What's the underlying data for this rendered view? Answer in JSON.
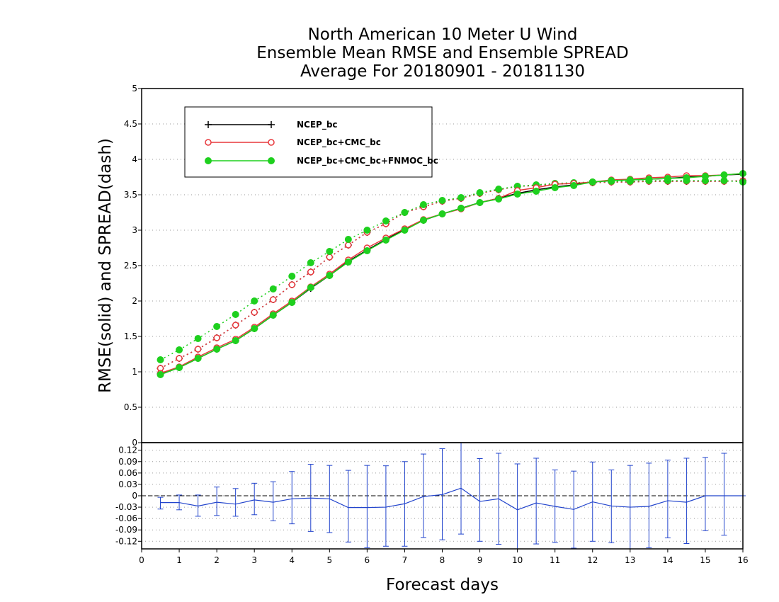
{
  "chart_data": {
    "type": "line",
    "title_lines": [
      "North American 10 Meter U Wind",
      "Ensemble Mean RMSE and Ensemble SPREAD",
      "Average For 20180901 - 20181130"
    ],
    "xlabel": "Forecast days",
    "ylabel": "RMSE(solid) and SPREAD(dash)",
    "xlim": [
      0,
      16
    ],
    "ylim": [
      0,
      5
    ],
    "x_ticks": [
      "0",
      "1",
      "2",
      "3",
      "4",
      "5",
      "6",
      "7",
      "8",
      "9",
      "10",
      "11",
      "12",
      "13",
      "14",
      "15",
      "16"
    ],
    "y_ticks": [
      "0",
      "0.5",
      "1",
      "1.5",
      "2",
      "2.5",
      "3",
      "3.5",
      "4",
      "4.5",
      "5"
    ],
    "grid": "horizontal dotted",
    "legend_position": "top-left",
    "x": [
      0.5,
      1,
      1.5,
      2,
      2.5,
      3,
      3.5,
      4,
      4.5,
      5,
      5.5,
      6,
      6.5,
      7,
      7.5,
      8,
      8.5,
      9,
      9.5,
      10,
      10.5,
      11,
      11.5,
      12,
      12.5,
      13,
      13.5,
      14,
      14.5,
      15,
      15.5,
      16
    ],
    "series": [
      {
        "name": "NCEP_bc",
        "color": "#000000",
        "marker": "plus",
        "rmse": [
          0.97,
          1.06,
          1.19,
          1.32,
          1.44,
          1.61,
          1.8,
          1.98,
          2.18,
          2.36,
          2.56,
          2.72,
          2.87,
          3.01,
          3.14,
          3.23,
          3.31,
          3.39,
          3.45,
          3.52,
          3.57,
          3.61,
          3.64,
          3.68,
          3.7,
          3.71,
          3.72,
          3.73,
          3.75,
          3.76,
          3.78,
          3.79
        ],
        "spread": [
          1.05,
          1.19,
          1.32,
          1.48,
          1.66,
          1.84,
          2.02,
          2.23,
          2.41,
          2.62,
          2.79,
          2.97,
          3.09,
          3.25,
          3.33,
          3.41,
          3.45,
          3.52,
          3.57,
          3.62,
          3.63,
          3.65,
          3.66,
          3.67,
          3.68,
          3.68,
          3.69,
          3.69,
          3.69,
          3.69,
          3.69,
          3.7
        ]
      },
      {
        "name": "NCEP_bc+CMC_bc",
        "color": "#e8383c",
        "marker": "open-circle",
        "rmse": [
          0.98,
          1.07,
          1.21,
          1.34,
          1.46,
          1.63,
          1.82,
          2.0,
          2.2,
          2.38,
          2.58,
          2.75,
          2.89,
          3.02,
          3.15,
          3.23,
          3.3,
          3.39,
          3.45,
          3.56,
          3.6,
          3.65,
          3.66,
          3.68,
          3.71,
          3.72,
          3.74,
          3.75,
          3.77,
          3.77,
          3.78,
          3.8
        ],
        "spread": [
          1.05,
          1.19,
          1.32,
          1.48,
          1.66,
          1.84,
          2.02,
          2.23,
          2.41,
          2.62,
          2.79,
          2.97,
          3.09,
          3.25,
          3.33,
          3.41,
          3.45,
          3.52,
          3.57,
          3.62,
          3.63,
          3.65,
          3.66,
          3.67,
          3.68,
          3.68,
          3.69,
          3.69,
          3.69,
          3.69,
          3.69,
          3.7
        ]
      },
      {
        "name": "NCEP_bc+CMC_bc+FNMOC_bc",
        "color": "#1ed01e",
        "marker": "filled-circle",
        "rmse": [
          0.96,
          1.06,
          1.19,
          1.32,
          1.44,
          1.61,
          1.8,
          1.98,
          2.19,
          2.36,
          2.55,
          2.71,
          2.86,
          3.0,
          3.14,
          3.23,
          3.31,
          3.39,
          3.44,
          3.51,
          3.55,
          3.6,
          3.63,
          3.68,
          3.7,
          3.71,
          3.72,
          3.73,
          3.74,
          3.76,
          3.78,
          3.8
        ],
        "spread": [
          1.17,
          1.31,
          1.47,
          1.64,
          1.81,
          2.0,
          2.17,
          2.35,
          2.54,
          2.7,
          2.87,
          3.0,
          3.13,
          3.25,
          3.36,
          3.42,
          3.46,
          3.53,
          3.58,
          3.62,
          3.64,
          3.66,
          3.67,
          3.68,
          3.69,
          3.69,
          3.7,
          3.7,
          3.7,
          3.7,
          3.7,
          3.68
        ]
      }
    ],
    "difference_panel": {
      "ylim": [
        -0.14,
        0.14
      ],
      "y_ticks": [
        "0.12",
        "0.09",
        "0.06",
        "0.03",
        "0",
        "-0.03",
        "-0.06",
        "-0.09",
        "-0.12"
      ],
      "color": "#2244cc",
      "mean": [
        -0.018,
        -0.018,
        -0.027,
        -0.017,
        -0.022,
        -0.011,
        -0.017,
        -0.008,
        -0.006,
        -0.008,
        -0.031,
        -0.031,
        -0.03,
        -0.021,
        -0.002,
        0.003,
        0.02,
        -0.015,
        -0.008,
        -0.037,
        -0.019,
        -0.028,
        -0.036,
        -0.016,
        -0.027,
        -0.03,
        -0.028,
        -0.013,
        -0.017,
        0.0,
        0.0,
        0.0
      ],
      "upper": [
        -0.004,
        0.002,
        0.002,
        0.023,
        0.019,
        0.033,
        0.037,
        0.064,
        0.083,
        0.08,
        0.067,
        0.08,
        0.079,
        0.09,
        0.11,
        0.124,
        0.14,
        0.098,
        0.112,
        0.084,
        0.099,
        0.068,
        0.065,
        0.089,
        0.068,
        0.08,
        0.086,
        0.094,
        0.099,
        0.101,
        0.112,
        0.0
      ],
      "lower": [
        -0.035,
        -0.037,
        -0.054,
        -0.052,
        -0.054,
        -0.05,
        -0.066,
        -0.074,
        -0.094,
        -0.097,
        -0.122,
        -0.137,
        -0.133,
        -0.133,
        -0.11,
        -0.116,
        -0.101,
        -0.12,
        -0.128,
        -0.14,
        -0.127,
        -0.123,
        -0.138,
        -0.12,
        -0.124,
        -0.14,
        -0.137,
        -0.111,
        -0.126,
        -0.092,
        -0.104,
        0.0
      ]
    }
  }
}
